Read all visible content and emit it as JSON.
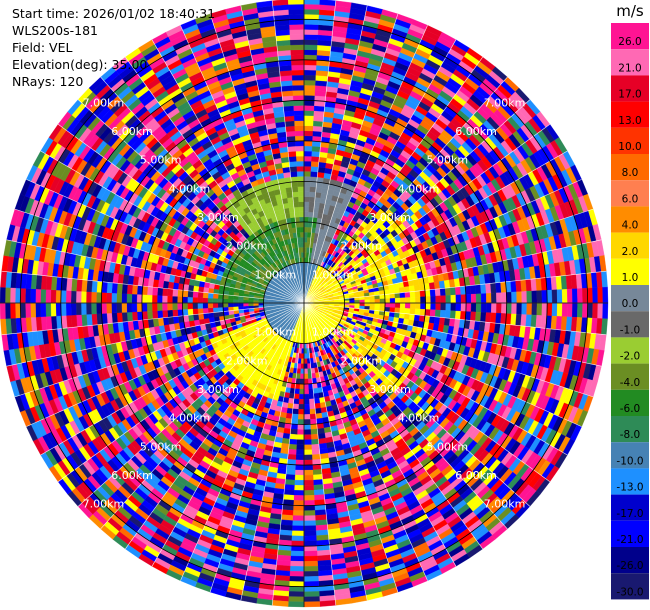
{
  "header": {
    "start_time": "Start time: 2026/01/02 18:40:31",
    "instrument": "WLS200s-181",
    "field": "Field: VEL",
    "elevation": "Elevation(deg): 35.00",
    "nrays": "NRays: 120"
  },
  "colorbar": {
    "unit": "m/s",
    "ticks": [
      "26.0",
      "21.0",
      "17.0",
      "13.0",
      "10.0",
      "8.0",
      "6.0",
      "4.0",
      "2.0",
      "1.0",
      "0.0",
      "-1.0",
      "-2.0",
      "-4.0",
      "-6.0",
      "-8.0",
      "-10.0",
      "-13.0",
      "-17.0",
      "-21.0",
      "-26.0",
      "-30.0"
    ],
    "colors": [
      "#ff1493",
      "#ff69b4",
      "#e60026",
      "#ff0000",
      "#ff3300",
      "#ff6a00",
      "#ff7f50",
      "#ff8c00",
      "#ffd700",
      "#ffff00",
      "#778899",
      "#696969",
      "#9acd32",
      "#6b8e23",
      "#228b22",
      "#2e8b57",
      "#4682b4",
      "#1e90ff",
      "#0000cd",
      "#0000ff",
      "#00008b",
      "#191970"
    ]
  },
  "chart_data": {
    "type": "ppi",
    "field": "VEL",
    "units": "m/s",
    "nrays": 120,
    "ring_labels": [
      "1.00km",
      "2.00km",
      "3.00km",
      "4.00km",
      "5.00km",
      "6.00km",
      "7.00km"
    ],
    "range_max_km": 7.5,
    "vmin": -30,
    "vmax": 30
  }
}
